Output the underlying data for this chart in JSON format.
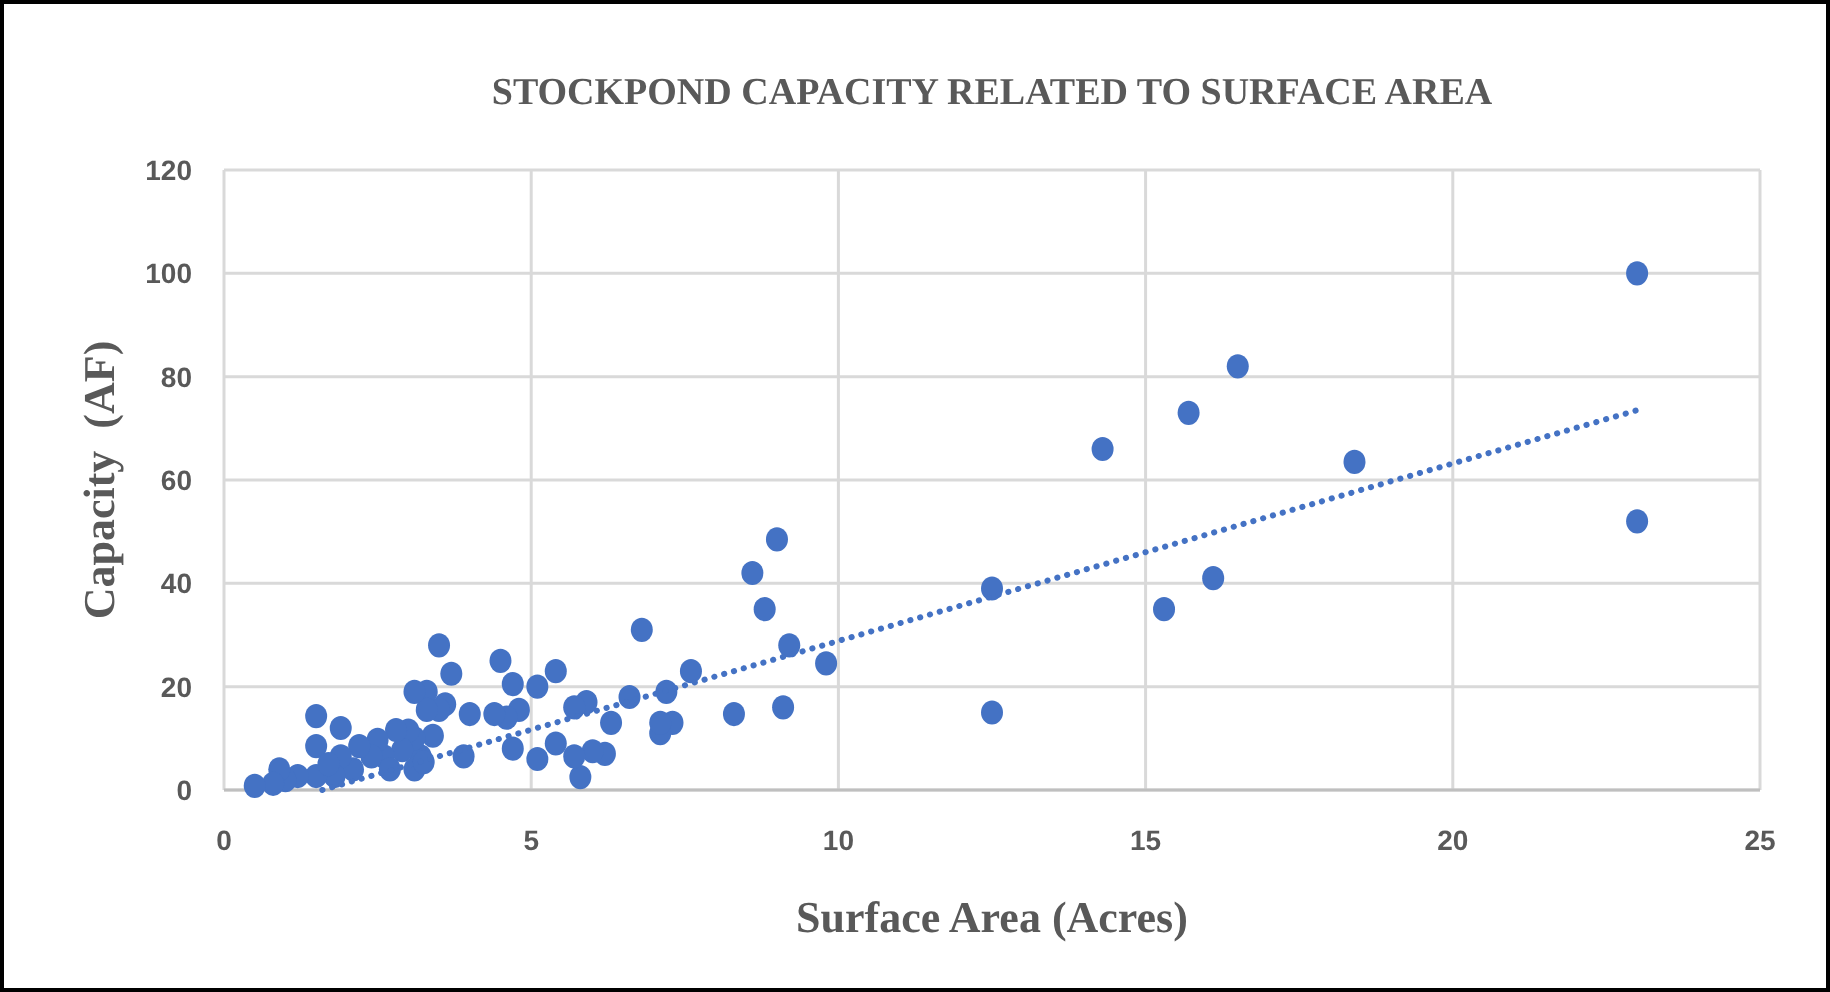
{
  "chart_data": {
    "type": "scatter",
    "title": "STOCKPOND CAPACITY RELATED TO SURFACE AREA",
    "xlabel": "Surface Area (Acres)",
    "ylabel": "Capacity  (AF)",
    "xlim": [
      0,
      25
    ],
    "ylim": [
      0,
      120
    ],
    "xticks": [
      0,
      5,
      10,
      15,
      20,
      25
    ],
    "yticks": [
      0,
      20,
      40,
      60,
      80,
      100,
      120
    ],
    "grid": true,
    "marker": "circle",
    "series": [
      {
        "color": "#4472c4",
        "x": [
          23.0,
          23.0,
          16.5,
          16.1,
          15.7,
          15.3,
          14.3,
          12.5,
          12.5,
          18.4,
          9.8,
          8.8,
          9.0,
          8.6,
          9.2,
          9.1,
          8.3,
          7.6,
          7.3,
          7.2,
          7.1,
          7.1,
          6.8,
          6.6,
          6.3,
          6.2,
          6.0,
          5.9,
          5.8,
          5.7,
          5.7,
          5.4,
          5.4,
          5.1,
          5.1,
          4.8,
          4.7,
          4.7,
          4.6,
          4.5,
          4.4,
          4.0,
          3.9,
          3.7,
          3.6,
          3.5,
          3.5,
          3.4,
          3.3,
          3.3,
          3.2,
          3.1,
          3.1,
          3.0,
          2.9,
          2.8,
          2.6,
          2.5,
          2.4,
          2.2,
          2.1,
          1.9,
          1.9,
          1.8,
          1.5,
          1.5,
          1.5,
          1.2,
          1.0,
          0.9,
          0.8,
          0.5,
          1.7,
          2.7,
          3.1,
          3.25
        ],
        "values": [
          100,
          52,
          82,
          41,
          73,
          35,
          66,
          39,
          15,
          63.5,
          24.5,
          35,
          48.5,
          42,
          28,
          16,
          14.7,
          23,
          13,
          19,
          11,
          13,
          31,
          18,
          13,
          7,
          7.5,
          17,
          2.5,
          6.5,
          16,
          9,
          23,
          6,
          20,
          15.5,
          8,
          20.5,
          14,
          25,
          14.7,
          14.7,
          6.5,
          22.5,
          16.6,
          28,
          15.5,
          10.5,
          19,
          15.5,
          6.5,
          10,
          19,
          11.5,
          7.7,
          11.6,
          6.5,
          9.7,
          6.5,
          8.5,
          4,
          6.5,
          12,
          2.7,
          14.3,
          8.5,
          2.7,
          2.7,
          1.9,
          4,
          1.2,
          0.8,
          5,
          4,
          4,
          5.4
        ]
      },
      {
        "type": "line",
        "color": "#4472c4",
        "line_style": "dotted",
        "marker": "none",
        "x": [
          1.6,
          23
        ],
        "values": [
          0,
          73.5
        ]
      }
    ]
  }
}
